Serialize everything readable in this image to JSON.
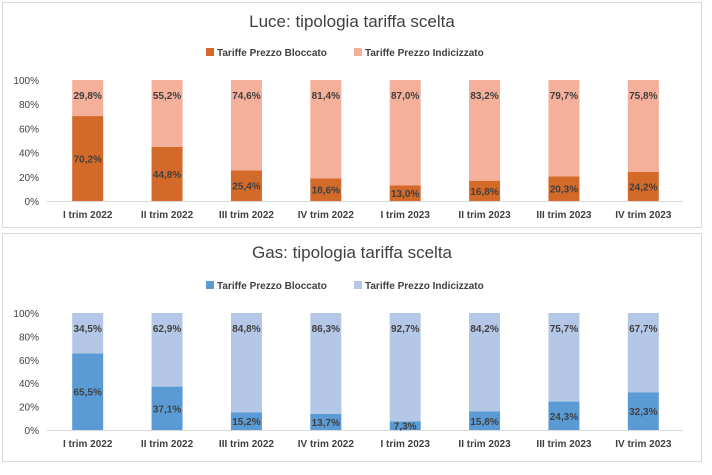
{
  "chart_data": [
    {
      "type": "bar",
      "stacked": true,
      "title": "Luce: tipologia tariffa scelta",
      "categories": [
        "I trim 2022",
        "II trim 2022",
        "III trim 2022",
        "IV trim 2022",
        "I trim 2023",
        "II trim 2023",
        "III trim 2023",
        "IV trim 2023"
      ],
      "series": [
        {
          "name": "Tariffe Prezzo Bloccato",
          "values": [
            70.2,
            44.8,
            25.4,
            18.6,
            13.0,
            16.8,
            20.3,
            24.2
          ],
          "labels": [
            "70,2%",
            "44,8%",
            "25,4%",
            "18,6%",
            "13,0%",
            "16,8%",
            "20,3%",
            "24,2%"
          ],
          "color": "#d46a2a"
        },
        {
          "name": "Tariffe Prezzo Indicizzato",
          "values": [
            29.8,
            55.2,
            74.6,
            81.4,
            87.0,
            83.2,
            79.7,
            75.8
          ],
          "labels": [
            "29,8%",
            "55,2%",
            "74,6%",
            "81,4%",
            "87,0%",
            "83,2%",
            "79,7%",
            "75,8%"
          ],
          "color": "#f4b09a"
        }
      ],
      "ylim": [
        0,
        100
      ],
      "yticks": [
        "0%",
        "20%",
        "40%",
        "60%",
        "80%",
        "100%"
      ],
      "legend_position": "top",
      "grid": false
    },
    {
      "type": "bar",
      "stacked": true,
      "title": "Gas: tipologia tariffa scelta",
      "categories": [
        "I trim 2022",
        "II trim 2022",
        "III trim 2022",
        "IV trim 2022",
        "I trim 2023",
        "II trim 2023",
        "III trim 2023",
        "IV trim 2023"
      ],
      "series": [
        {
          "name": "Tariffe Prezzo Bloccato",
          "values": [
            65.5,
            37.1,
            15.2,
            13.7,
            7.3,
            15.8,
            24.3,
            32.3
          ],
          "labels": [
            "65,5%",
            "37,1%",
            "15,2%",
            "13,7%",
            "7,3%",
            "15,8%",
            "24,3%",
            "32,3%"
          ],
          "color": "#5b9bd5"
        },
        {
          "name": "Tariffe Prezzo Indicizzato",
          "values": [
            34.5,
            62.9,
            84.8,
            86.3,
            92.7,
            84.2,
            75.7,
            67.7
          ],
          "labels": [
            "34,5%",
            "62,9%",
            "84,8%",
            "86,3%",
            "92,7%",
            "84,2%",
            "75,7%",
            "67,7%"
          ],
          "color": "#b4c7e7"
        }
      ],
      "ylim": [
        0,
        100
      ],
      "yticks": [
        "0%",
        "20%",
        "40%",
        "60%",
        "80%",
        "100%"
      ],
      "legend_position": "top",
      "grid": false
    }
  ]
}
